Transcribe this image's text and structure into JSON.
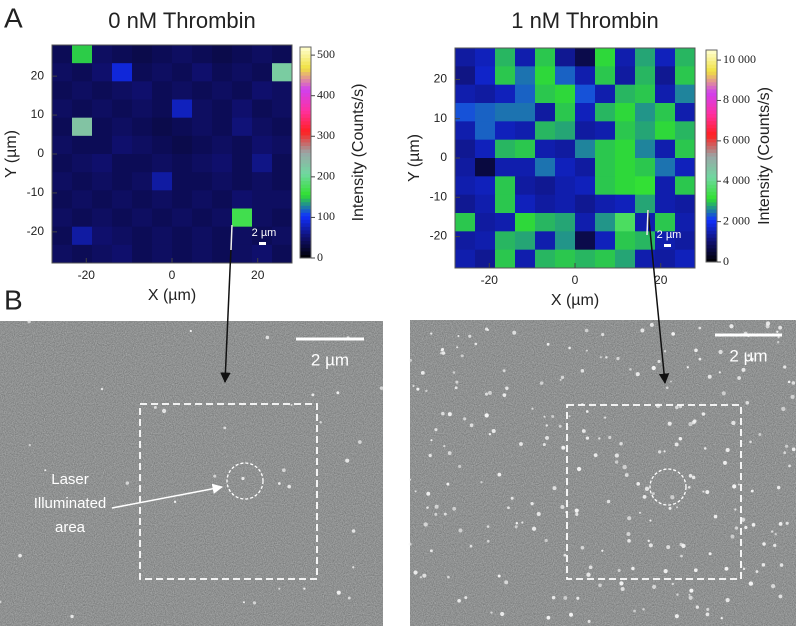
{
  "panel_labels": [
    "A",
    "B"
  ],
  "chart_data": [
    {
      "type": "heatmap",
      "title": "0 nM Thrombin",
      "xlabel": "X (µm)",
      "ylabel": "Y (µm)",
      "xlim": [
        -28,
        28
      ],
      "ylim": [
        -28,
        28
      ],
      "xticks": [
        -20,
        0,
        20
      ],
      "yticks": [
        -20,
        -10,
        0,
        10,
        20
      ],
      "zlim": [
        0,
        520
      ],
      "zticks": [
        0,
        100,
        200,
        300,
        400,
        500
      ],
      "colorbar_label": "Intensity (Counts/s)",
      "scale_bar_label": "2 µm",
      "colorscale": [
        "#000000",
        "#101070",
        "#1030ff",
        "#30e030",
        "#70d8a0",
        "#9aa6a6",
        "#ff2020",
        "#ff30a0",
        "#d040f0",
        "#f0e040",
        "#ffffd0"
      ],
      "z": [
        [
          40,
          150,
          45,
          40,
          35,
          40,
          45,
          40,
          35,
          40,
          45,
          40
        ],
        [
          45,
          40,
          50,
          90,
          40,
          45,
          40,
          50,
          40,
          45,
          40,
          220
        ],
        [
          40,
          45,
          40,
          45,
          50,
          40,
          45,
          40,
          45,
          40,
          50,
          45
        ],
        [
          45,
          40,
          45,
          40,
          45,
          40,
          80,
          45,
          40,
          50,
          40,
          45
        ],
        [
          40,
          230,
          40,
          45,
          40,
          35,
          40,
          45,
          40,
          55,
          45,
          40
        ],
        [
          45,
          40,
          40,
          50,
          45,
          40,
          35,
          40,
          45,
          40,
          50,
          45
        ],
        [
          40,
          45,
          50,
          40,
          40,
          45,
          40,
          45,
          50,
          40,
          60,
          40
        ],
        [
          45,
          40,
          45,
          40,
          45,
          70,
          40,
          40,
          45,
          40,
          45,
          40
        ],
        [
          40,
          45,
          40,
          45,
          40,
          45,
          40,
          45,
          40,
          50,
          45,
          45
        ],
        [
          45,
          40,
          45,
          40,
          45,
          40,
          45,
          40,
          45,
          170,
          45,
          40
        ],
        [
          40,
          70,
          50,
          45,
          40,
          45,
          40,
          45,
          40,
          45,
          40,
          45
        ],
        [
          45,
          40,
          45,
          50,
          40,
          45,
          40,
          45,
          40,
          45,
          50,
          40
        ]
      ]
    },
    {
      "type": "heatmap",
      "title": "1 nM Thrombin",
      "xlabel": "X (µm)",
      "ylabel": "Y (µm)",
      "xlim": [
        -28,
        28
      ],
      "ylim": [
        -28,
        28
      ],
      "xticks": [
        -20,
        0,
        20
      ],
      "yticks": [
        -20,
        -10,
        0,
        10,
        20
      ],
      "zlim": [
        0,
        10500
      ],
      "zticks": [
        0,
        {
          "value": 2000,
          "label": "2 000"
        },
        {
          "value": 4000,
          "label": "4 000"
        },
        {
          "value": 6000,
          "label": "6 000"
        },
        {
          "value": 8000,
          "label": "8 000"
        },
        {
          "value": 10000,
          "label": "10 000"
        }
      ],
      "colorbar_label": "Intensity (Counts/s)",
      "scale_bar_label": "2 µm",
      "colorscale": [
        "#000000",
        "#101070",
        "#1030ff",
        "#30e030",
        "#70d8a0",
        "#9aa6a6",
        "#ff2020",
        "#ff30a0",
        "#d040f0",
        "#f0e040",
        "#ffffd0"
      ],
      "z": [
        [
          1400,
          1600,
          2900,
          1500,
          3000,
          1300,
          700,
          3100,
          1500,
          2800,
          1600,
          2900
        ],
        [
          1200,
          1700,
          3000,
          2500,
          3100,
          2400,
          1500,
          3000,
          1400,
          2900,
          1300,
          3000
        ],
        [
          1500,
          1400,
          1600,
          2400,
          3000,
          3100,
          2300,
          1500,
          2900,
          3000,
          1500,
          2600
        ],
        [
          2300,
          2400,
          2500,
          2500,
          1400,
          3000,
          1600,
          2900,
          3100,
          2700,
          3000,
          1500
        ],
        [
          1500,
          2400,
          1600,
          1500,
          2900,
          2800,
          1400,
          1500,
          3000,
          2800,
          3100,
          2900
        ],
        [
          1300,
          1600,
          2900,
          3000,
          1500,
          1400,
          2600,
          3000,
          3100,
          2600,
          1500,
          3000
        ],
        [
          1400,
          600,
          1500,
          1500,
          2500,
          1600,
          1400,
          3000,
          3100,
          3000,
          2500,
          1600
        ],
        [
          1500,
          1600,
          3000,
          1400,
          1300,
          1500,
          1600,
          3000,
          3100,
          3200,
          1500,
          3000
        ],
        [
          1300,
          1500,
          3000,
          1600,
          1400,
          1500,
          1300,
          1500,
          1600,
          2800,
          1500,
          1400
        ],
        [
          3000,
          1400,
          1500,
          3100,
          2900,
          2800,
          1500,
          2700,
          3600,
          1500,
          3000,
          1500
        ],
        [
          1400,
          1500,
          2900,
          2800,
          1500,
          2700,
          700,
          1600,
          3000,
          2900,
          1500,
          1400
        ],
        [
          1500,
          1300,
          3000,
          1500,
          2900,
          3000,
          2900,
          3000,
          2800,
          1500,
          1400,
          1600
        ]
      ]
    }
  ],
  "images": [
    {
      "scale_bar_label": "2 µm",
      "annotation": [
        "Laser",
        "Illuminated",
        "area"
      ]
    },
    {
      "scale_bar_label": "2 µm"
    }
  ]
}
